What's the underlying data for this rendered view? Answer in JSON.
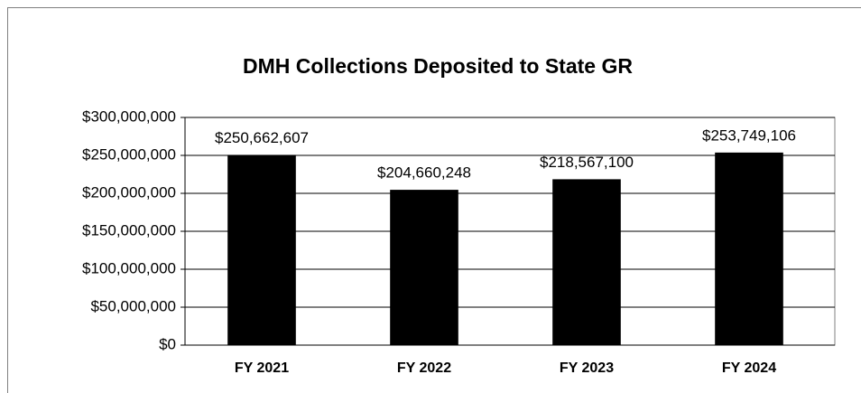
{
  "chart_data": {
    "type": "bar",
    "title": "DMH Collections Deposited to State GR",
    "categories": [
      "FY 2021",
      "FY 2022",
      "FY 2023",
      "FY 2024"
    ],
    "values": [
      250662607,
      204660248,
      218567100,
      253749106
    ],
    "value_labels": [
      "$250,662,607",
      "$204,660,248",
      "$218,567,100",
      "$253,749,106"
    ],
    "color": "#000000",
    "ylim": [
      0,
      300000000
    ],
    "yticks": [
      {
        "value": 0,
        "label": "$0"
      },
      {
        "value": 50000000,
        "label": "$50,000,000"
      },
      {
        "value": 100000000,
        "label": "$100,000,000"
      },
      {
        "value": 150000000,
        "label": "$150,000,000"
      },
      {
        "value": 200000000,
        "label": "$200,000,000"
      },
      {
        "value": 250000000,
        "label": "$250,000,000"
      },
      {
        "value": 300000000,
        "label": "$300,000,000"
      }
    ],
    "grid": true
  }
}
